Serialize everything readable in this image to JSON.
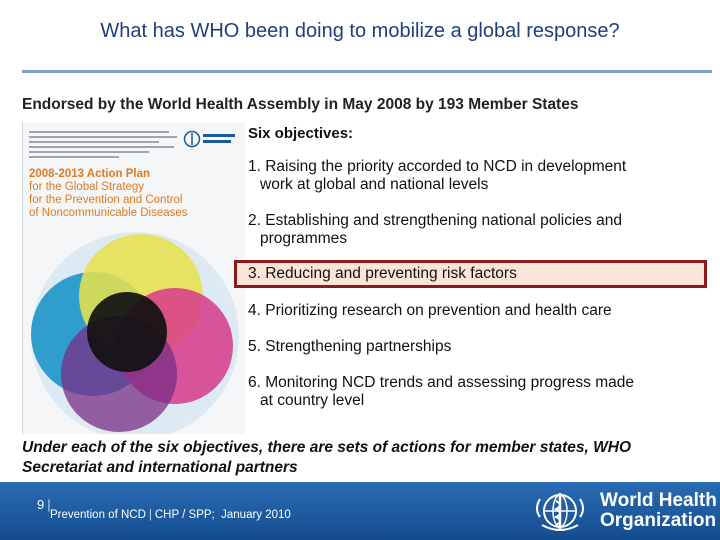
{
  "slide": {
    "title": "What has WHO been doing to mobilize a global response?",
    "endorsed": "Endorsed by the World Health Assembly in May 2008 by 193 Member States",
    "cover": {
      "line1": "2008-2013 Action Plan",
      "line2": "for the Global Strategy",
      "line3": "for the Prevention and Control",
      "line4": "of Noncommunicable Diseases"
    },
    "six_objectives_label": "Six objectives:",
    "objectives": [
      {
        "line1": "1. Raising the priority accorded to NCD in development",
        "line2": "work at global and national levels"
      },
      {
        "line1": "2. Establishing and strengthening national policies and",
        "line2": "programmes"
      },
      {
        "line1": "3. Reducing and preventing risk factors",
        "line2": ""
      },
      {
        "line1": "4. Prioritizing research on prevention and health care",
        "line2": ""
      },
      {
        "line1": "5. Strengthening partnerships",
        "line2": ""
      },
      {
        "line1": "6. Monitoring NCD trends and assessing progress made",
        "line2": "at country level"
      }
    ],
    "footer_note": "Under each of the six objectives, there are sets of actions for member states, WHO Secretariat and international partners"
  },
  "footer": {
    "page_number": "9",
    "separator": "|",
    "footer_text": "Prevention of NCD",
    "footer_text2": "CHP / SPP;",
    "footer_date": "January 2010",
    "logo_line1": "World Health",
    "logo_line2": "Organization"
  },
  "colors": {
    "title": "#1f3f7a",
    "footer_bar": "#1c5aa0",
    "highlight_border": "#8b1a1a",
    "highlight_fill": "#fbe4d8",
    "cover_title": "#e07a20"
  }
}
